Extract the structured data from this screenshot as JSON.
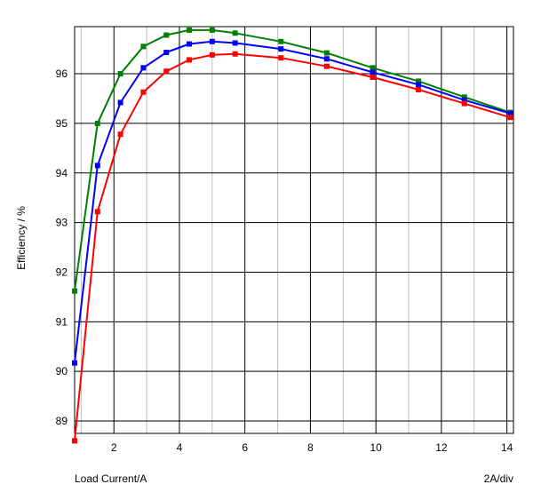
{
  "chart_data": {
    "type": "line",
    "title": "",
    "xlabel": "Load Current/A",
    "ylabel": "Efficiency / %",
    "scale_note": "2A/div",
    "xlim": [
      0.8,
      14.2
    ],
    "ylim": [
      88.75,
      96.95
    ],
    "xticks": [
      2,
      4,
      6,
      8,
      10,
      12,
      14
    ],
    "yticks": [
      89,
      90,
      91,
      92,
      93,
      94,
      95,
      96
    ],
    "x_minor_step": 1,
    "grid": true,
    "legend": "none",
    "series": [
      {
        "color": "#008000",
        "x": [
          0.8,
          1.5,
          2.2,
          2.9,
          3.6,
          4.3,
          5.0,
          5.7,
          7.1,
          8.5,
          9.9,
          11.3,
          12.7,
          14.1
        ],
        "y": [
          91.62,
          95.0,
          96.0,
          96.55,
          96.78,
          96.88,
          96.88,
          96.82,
          96.65,
          96.42,
          96.12,
          95.85,
          95.53,
          95.22
        ]
      },
      {
        "color": "#0000ff",
        "x": [
          0.8,
          1.5,
          2.2,
          2.9,
          3.6,
          4.3,
          5.0,
          5.7,
          7.1,
          8.5,
          9.9,
          11.3,
          12.7,
          14.1
        ],
        "y": [
          90.17,
          94.15,
          95.42,
          96.12,
          96.43,
          96.6,
          96.65,
          96.62,
          96.5,
          96.3,
          96.03,
          95.78,
          95.47,
          95.2
        ]
      },
      {
        "color": "#ff0000",
        "x": [
          0.8,
          1.5,
          2.2,
          2.9,
          3.6,
          4.3,
          5.0,
          5.7,
          7.1,
          8.5,
          9.9,
          11.3,
          12.7,
          14.1
        ],
        "y": [
          88.6,
          93.22,
          94.78,
          95.63,
          96.05,
          96.28,
          96.38,
          96.4,
          96.32,
          96.15,
          95.93,
          95.68,
          95.4,
          95.12
        ]
      }
    ]
  }
}
